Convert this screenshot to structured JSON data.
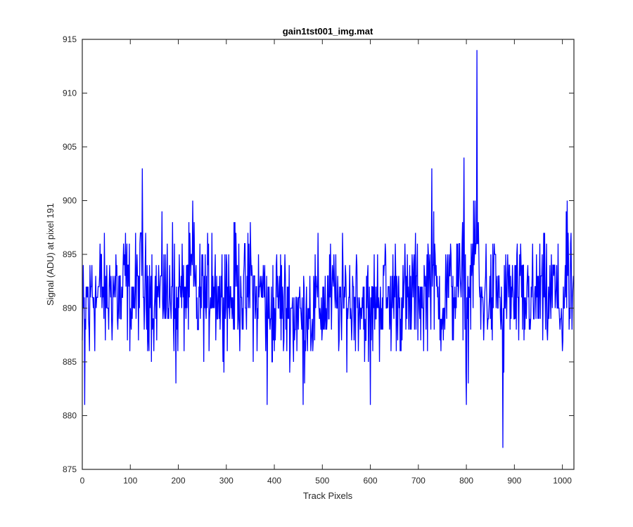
{
  "chart_data": {
    "type": "line",
    "title": "gain1tst001_img.mat",
    "xlabel": "Track Pixels",
    "ylabel": "Signal (ADU) at pixel 191",
    "xlim": [
      0,
      1024
    ],
    "ylim": [
      875,
      915
    ],
    "xticks": [
      0,
      100,
      200,
      300,
      400,
      500,
      600,
      700,
      800,
      900,
      1000
    ],
    "yticks": [
      875,
      880,
      885,
      890,
      895,
      900,
      905,
      910,
      915
    ],
    "grid": false,
    "line_color": "#0000ff",
    "series": [
      {
        "sample_spacing": 1,
        "anchor_x": [
          0,
          5,
          10,
          15,
          20,
          30,
          40,
          50,
          60,
          70,
          80,
          90,
          100,
          110,
          120,
          125,
          130,
          140,
          150,
          160,
          170,
          180,
          188,
          195,
          200,
          210,
          220,
          230,
          240,
          250,
          260,
          270,
          280,
          290,
          300,
          310,
          320,
          330,
          340,
          350,
          360,
          370,
          380,
          385,
          390,
          400,
          410,
          420,
          430,
          440,
          450,
          460,
          470,
          480,
          490,
          500,
          510,
          520,
          530,
          540,
          550,
          560,
          570,
          580,
          590,
          600,
          610,
          620,
          630,
          640,
          650,
          660,
          670,
          680,
          690,
          700,
          710,
          720,
          728,
          740,
          750,
          760,
          770,
          780,
          790,
          795,
          800,
          810,
          822,
          830,
          840,
          850,
          860,
          870,
          876,
          880,
          890,
          900,
          910,
          920,
          930,
          940,
          950,
          960,
          970,
          980,
          990,
          1000,
          1010,
          1015,
          1023
        ],
        "anchor_y": [
          887,
          881,
          892,
          886,
          894,
          891,
          895,
          890,
          893,
          895,
          889,
          897,
          890,
          892,
          896,
          903,
          891,
          894,
          890,
          892,
          895,
          889,
          898,
          883,
          892,
          891,
          894,
          900,
          888,
          893,
          890,
          897,
          893,
          891,
          895,
          890,
          897,
          893,
          890,
          898,
          889,
          892,
          894,
          881,
          889,
          886,
          892,
          887,
          889,
          885,
          888,
          881,
          890,
          886,
          891,
          888,
          889,
          892,
          890,
          887,
          891,
          889,
          893,
          890,
          887,
          881,
          892,
          890,
          894,
          888,
          893,
          890,
          892,
          888,
          894,
          892,
          890,
          896,
          903,
          891,
          889,
          894,
          892,
          896,
          893,
          904,
          881,
          896,
          914,
          888,
          893,
          889,
          895,
          891,
          877,
          890,
          894,
          889,
          892,
          887,
          893,
          889,
          893,
          891,
          889,
          894,
          890,
          886,
          900,
          890,
          893
        ]
      }
    ]
  }
}
